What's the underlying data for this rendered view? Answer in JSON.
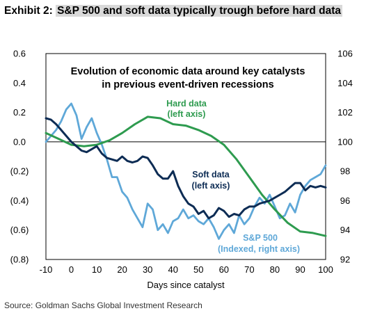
{
  "header": {
    "exhibit_label": "Exhibit 2:",
    "title": "S&P 500 and soft data typically trough before hard data"
  },
  "source": "Source: Goldman Sachs Global Investment Research",
  "chart_data": {
    "type": "line",
    "title_lines": [
      "Evolution of economic data around key catalysts",
      "in previous event-driven recessions"
    ],
    "xlabel": "Days since catalyst",
    "xlim": [
      -10,
      100
    ],
    "x_ticks": [
      "-10",
      "0",
      "10",
      "20",
      "30",
      "40",
      "50",
      "60",
      "70",
      "80",
      "90",
      "100"
    ],
    "left_axis": {
      "ylim": [
        -0.8,
        0.6
      ],
      "tick_values": [
        -0.8,
        -0.6,
        -0.4,
        -0.2,
        0,
        0.2,
        0.4,
        0.6
      ],
      "tick_labels": [
        "(0.8)",
        "(0.6)",
        "(0.4)",
        "(0.2)",
        "0.0",
        "0.2",
        "0.4",
        "0.6"
      ]
    },
    "right_axis": {
      "ylim": [
        92,
        106
      ],
      "tick_values": [
        92,
        94,
        96,
        98,
        100,
        102,
        104,
        106
      ],
      "tick_labels": [
        "92",
        "94",
        "96",
        "98",
        "100",
        "102",
        "104",
        "106"
      ]
    },
    "zero_line": 0,
    "series": [
      {
        "name": "Hard data",
        "annotation": [
          "Hard data",
          "(left axis)"
        ],
        "axis": "left",
        "color": "#2e9b4f",
        "x": [
          -10,
          -5,
          0,
          5,
          10,
          15,
          20,
          25,
          30,
          35,
          40,
          45,
          50,
          55,
          60,
          65,
          70,
          75,
          80,
          85,
          90,
          95,
          100
        ],
        "y": [
          0.06,
          0.02,
          -0.02,
          -0.03,
          -0.02,
          0.01,
          0.06,
          0.12,
          0.17,
          0.16,
          0.12,
          0.11,
          0.08,
          0.04,
          -0.02,
          -0.12,
          -0.24,
          -0.36,
          -0.46,
          -0.55,
          -0.61,
          -0.62,
          -0.64
        ]
      },
      {
        "name": "Soft data",
        "annotation": [
          "Soft data",
          "(left axis)"
        ],
        "axis": "left",
        "color": "#0d2c54",
        "x": [
          -10,
          -8,
          -6,
          -4,
          -2,
          0,
          2,
          4,
          6,
          8,
          10,
          12,
          14,
          16,
          18,
          20,
          22,
          24,
          26,
          28,
          30,
          32,
          34,
          36,
          38,
          40,
          42,
          44,
          46,
          48,
          50,
          52,
          54,
          56,
          58,
          60,
          62,
          64,
          66,
          68,
          70,
          72,
          74,
          76,
          78,
          80,
          82,
          84,
          86,
          88,
          90,
          92,
          94,
          96,
          98,
          100
        ],
        "y": [
          0.16,
          0.15,
          0.12,
          0.08,
          0.04,
          0.0,
          -0.03,
          -0.06,
          -0.07,
          -0.05,
          -0.03,
          -0.08,
          -0.11,
          -0.12,
          -0.13,
          -0.1,
          -0.13,
          -0.14,
          -0.13,
          -0.1,
          -0.11,
          -0.16,
          -0.22,
          -0.25,
          -0.25,
          -0.2,
          -0.3,
          -0.37,
          -0.42,
          -0.44,
          -0.49,
          -0.47,
          -0.52,
          -0.5,
          -0.45,
          -0.47,
          -0.51,
          -0.49,
          -0.5,
          -0.46,
          -0.44,
          -0.44,
          -0.42,
          -0.41,
          -0.4,
          -0.38,
          -0.36,
          -0.34,
          -0.31,
          -0.28,
          -0.28,
          -0.33,
          -0.3,
          -0.31,
          -0.3,
          -0.31
        ]
      },
      {
        "name": "S&P 500",
        "annotation": [
          "S&P 500",
          "(Indexed, right axis)"
        ],
        "axis": "right",
        "color": "#5fa8d8",
        "x": [
          -10,
          -8,
          -6,
          -4,
          -2,
          0,
          2,
          4,
          6,
          8,
          10,
          12,
          14,
          16,
          18,
          20,
          22,
          24,
          26,
          28,
          30,
          32,
          34,
          36,
          38,
          40,
          42,
          44,
          46,
          48,
          50,
          52,
          54,
          56,
          58,
          60,
          62,
          64,
          66,
          68,
          70,
          72,
          74,
          76,
          78,
          80,
          82,
          84,
          86,
          88,
          90,
          92,
          94,
          96,
          98,
          100
        ],
        "y": [
          100.0,
          100.4,
          100.8,
          101.4,
          102.2,
          102.6,
          101.8,
          100.2,
          101.0,
          101.6,
          100.6,
          99.8,
          98.8,
          97.6,
          97.6,
          96.6,
          96.2,
          95.4,
          94.8,
          94.2,
          95.8,
          95.4,
          94.0,
          94.4,
          93.8,
          94.6,
          94.8,
          95.4,
          94.8,
          95.0,
          94.6,
          94.4,
          94.8,
          94.2,
          93.4,
          94.0,
          94.4,
          93.8,
          95.0,
          94.4,
          94.8,
          95.6,
          96.2,
          95.8,
          96.4,
          95.6,
          94.8,
          95.0,
          95.8,
          95.2,
          96.4,
          97.0,
          97.4,
          97.6,
          97.8,
          98.4
        ]
      }
    ],
    "grid": false,
    "legend": "none (inline annotations)"
  }
}
